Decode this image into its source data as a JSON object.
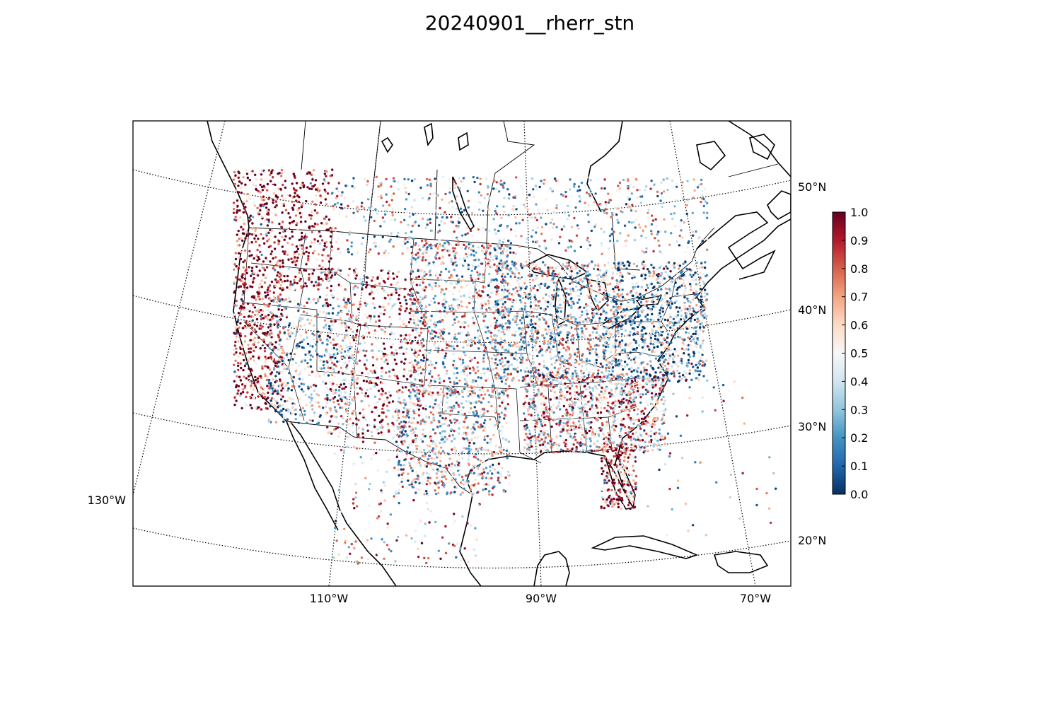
{
  "title": "20240901__rherr_stn",
  "map": {
    "projection": "lambert-conformal-conic",
    "extent": "North America (CONUS, southern Canada, Mexico, Caribbean)",
    "parallels": [
      {
        "value": 50,
        "label": "50°N"
      },
      {
        "value": 40,
        "label": "40°N"
      },
      {
        "value": 30,
        "label": "30°N"
      },
      {
        "value": 20,
        "label": "20°N"
      }
    ],
    "meridians": [
      {
        "value": -130,
        "label": "130°W"
      },
      {
        "value": -110,
        "label": "110°W"
      },
      {
        "value": -90,
        "label": "90°W"
      },
      {
        "value": -70,
        "label": "70°W"
      }
    ],
    "graticule_style": "dotted",
    "layers": [
      "coastlines",
      "country-borders",
      "state-borders",
      "station-points"
    ]
  },
  "colorbar": {
    "colormap": "RdBu_r",
    "min": 0.0,
    "max": 1.0,
    "ticks": [
      "0.0",
      "0.1",
      "0.2",
      "0.3",
      "0.4",
      "0.5",
      "0.6",
      "0.7",
      "0.8",
      "0.9",
      "1.0"
    ],
    "stops": [
      "#053061",
      "#2166ac",
      "#4393c3",
      "#92c5de",
      "#d1e5f0",
      "#f7f7f7",
      "#fddbc7",
      "#f4a582",
      "#d6604d",
      "#b2182b",
      "#67001f"
    ]
  },
  "stations": {
    "count_estimate": 9000,
    "description_regions": [
      {
        "region": "Pacific Northwest & British Columbia",
        "value": 0.95
      },
      {
        "region": "California coast",
        "value": 0.88
      },
      {
        "region": "Great Basin",
        "value": 0.35
      },
      {
        "region": "Rocky Mountains",
        "value": 0.72
      },
      {
        "region": "Great Plains",
        "value": 0.5
      },
      {
        "region": "Texas",
        "value": 0.45
      },
      {
        "region": "Midwest",
        "value": 0.42
      },
      {
        "region": "Southeast",
        "value": 0.62
      },
      {
        "region": "Florida",
        "value": 0.82
      },
      {
        "region": "Northeast",
        "value": 0.3
      },
      {
        "region": "Southern Canada",
        "value": 0.45
      },
      {
        "region": "Mexico",
        "value": 0.6
      }
    ]
  }
}
